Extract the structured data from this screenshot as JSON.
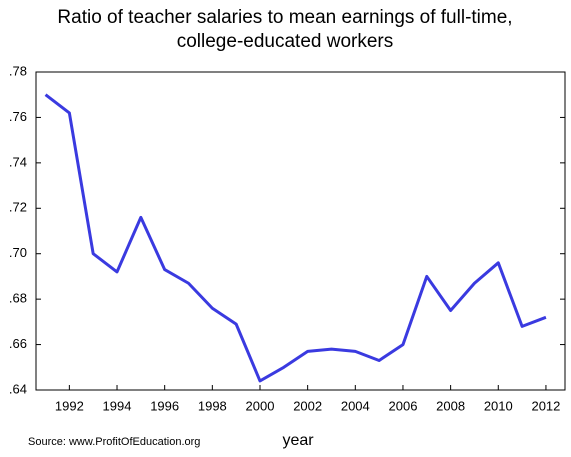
{
  "chart_data": {
    "type": "line",
    "title": [
      "Ratio of teacher salaries to mean earnings of full-time,",
      "college-educated workers"
    ],
    "x_label": "year",
    "source": "Source: www.ProfitOfEducation.org",
    "x": [
      1991,
      1992,
      1993,
      1994,
      1995,
      1996,
      1997,
      1998,
      1999,
      2000,
      2001,
      2002,
      2003,
      2004,
      2005,
      2006,
      2007,
      2008,
      2009,
      2010,
      2011,
      2012
    ],
    "series": [
      {
        "color": "#3a3ae0",
        "values": [
          0.77,
          0.762,
          0.7,
          0.692,
          0.716,
          0.693,
          0.687,
          0.676,
          0.669,
          0.644,
          0.65,
          0.657,
          0.658,
          0.657,
          0.653,
          0.66,
          0.69,
          0.675,
          0.687,
          0.696,
          0.668,
          0.672
        ]
      }
    ],
    "xlim": [
      1990.6,
      2012.8
    ],
    "xticks": [
      1992,
      1994,
      1996,
      1998,
      2000,
      2002,
      2004,
      2006,
      2008,
      2010,
      2012
    ],
    "ylim": [
      0.64,
      0.78
    ],
    "yticks": [
      {
        "value": 0.64,
        "label": ".64"
      },
      {
        "value": 0.66,
        "label": ".66"
      },
      {
        "value": 0.68,
        "label": ".68"
      },
      {
        "value": 0.7,
        "label": ".70"
      },
      {
        "value": 0.72,
        "label": ".72"
      },
      {
        "value": 0.74,
        "label": ".74"
      },
      {
        "value": 0.76,
        "label": ".76"
      },
      {
        "value": 0.78,
        "label": ".78"
      }
    ]
  }
}
